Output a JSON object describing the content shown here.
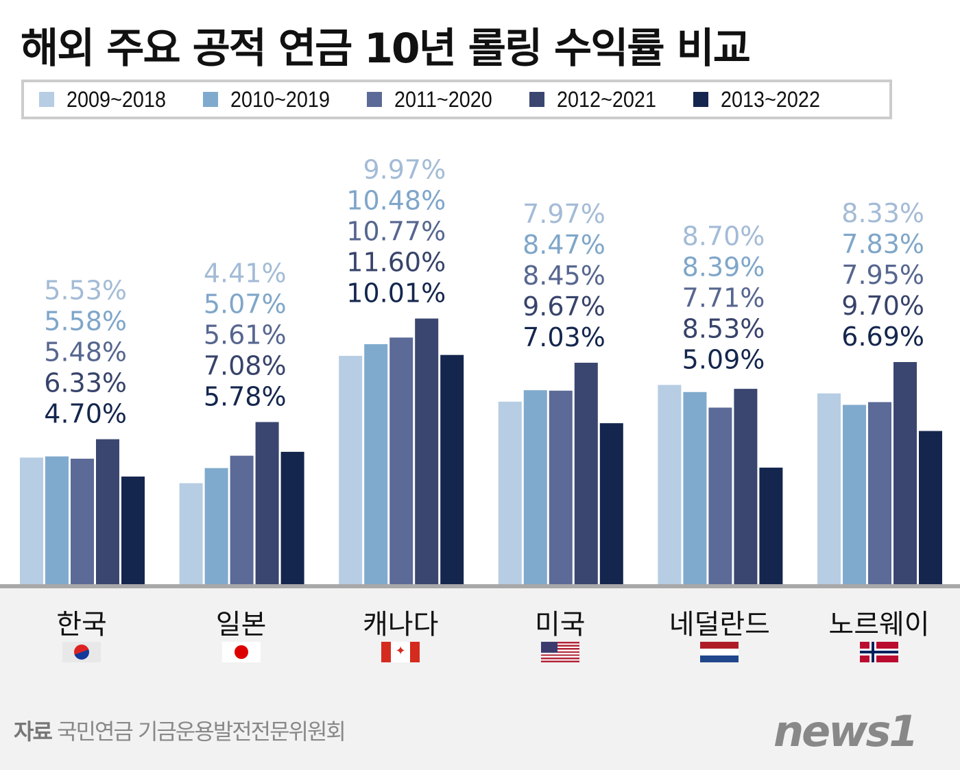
{
  "title": "해외 주요 공적 연금 10년 롤링 수익률 비교",
  "source_label": "자료",
  "source_text": "국민연금 기금운용발전전문위원회",
  "logo_text": "news1",
  "chart_data": {
    "type": "bar",
    "title": "해외 주요 공적 연금 10년 롤링 수익률 비교",
    "categories": [
      "한국",
      "일본",
      "캐나다",
      "미국",
      "네덜란드",
      "노르웨이"
    ],
    "flags": [
      "korea-flag",
      "japan-flag",
      "canada-flag",
      "usa-flag",
      "netherlands-flag",
      "norway-flag"
    ],
    "legend_placement": "top",
    "grid": false,
    "ylim": [
      0,
      12
    ],
    "unit": "%",
    "series": [
      {
        "name": "2009~2018",
        "color": "#b6cde3",
        "label_color": "#a3bbd6",
        "values": [
          5.53,
          4.41,
          9.97,
          7.97,
          8.7,
          8.33
        ]
      },
      {
        "name": "2010~2019",
        "color": "#7faacd",
        "label_color": "#7fa6c9",
        "values": [
          5.58,
          5.07,
          10.48,
          8.47,
          8.39,
          7.83
        ]
      },
      {
        "name": "2011~2020",
        "color": "#5b6a96",
        "label_color": "#56668f",
        "values": [
          5.48,
          5.61,
          10.77,
          8.45,
          7.71,
          7.95
        ]
      },
      {
        "name": "2012~2021",
        "color": "#3a4670",
        "label_color": "#37436a",
        "values": [
          6.33,
          7.08,
          11.6,
          9.67,
          8.53,
          9.7
        ]
      },
      {
        "name": "2013~2022",
        "color": "#14264d",
        "label_color": "#14264d",
        "values": [
          4.7,
          5.78,
          10.01,
          7.03,
          5.09,
          6.69
        ]
      }
    ]
  }
}
